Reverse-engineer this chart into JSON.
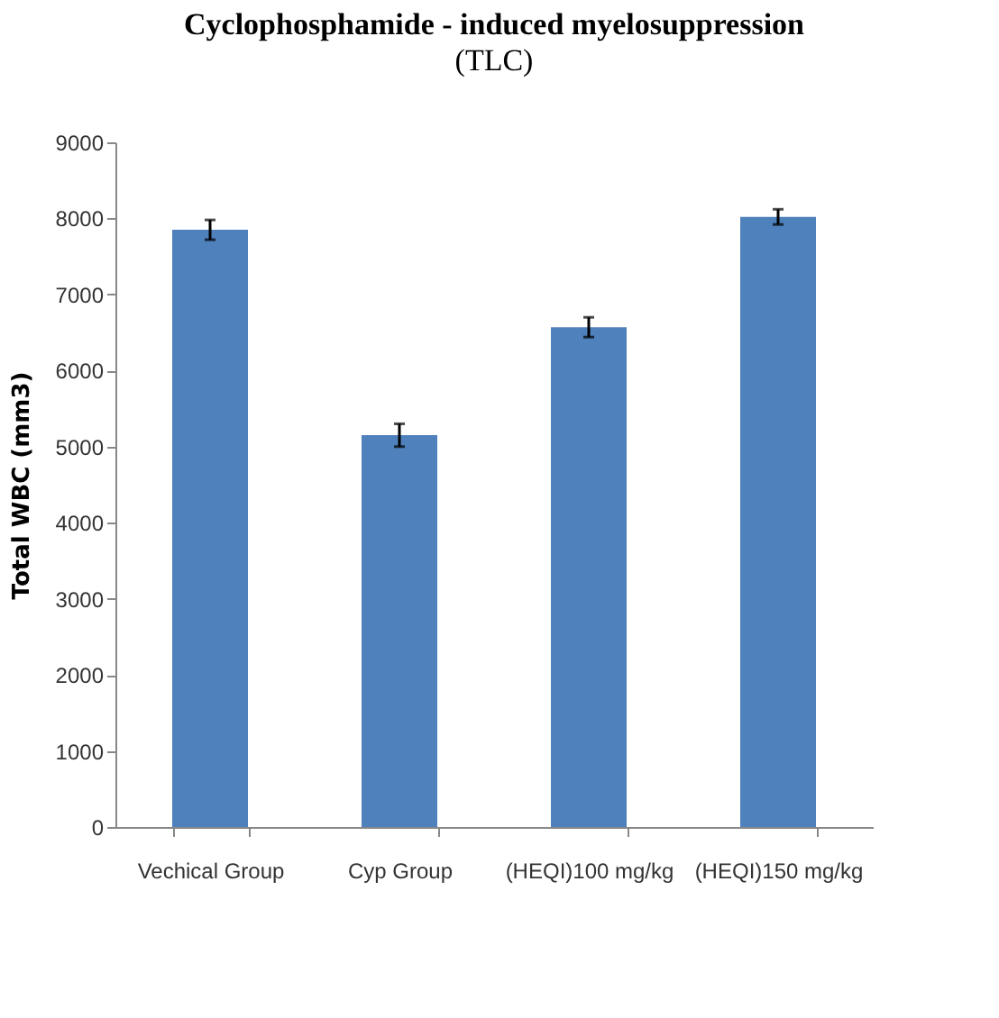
{
  "chart_data": {
    "type": "bar",
    "title": "Cyclophosphamide - induced myelosuppression",
    "subtitle": "(TLC)",
    "ylabel": "Total WBC   (mm3)",
    "categories": [
      "Vechical Group",
      "Cyp Group",
      "(HEQI)100 mg/kg",
      "(HEQI)150 mg/kg"
    ],
    "values": [
      7850,
      5150,
      6570,
      8020
    ],
    "errors": [
      130,
      150,
      130,
      100
    ],
    "color": "#4f81bd",
    "ylim": [
      0,
      9000
    ],
    "yticks": [
      0,
      1000,
      2000,
      3000,
      4000,
      5000,
      6000,
      7000,
      8000,
      9000
    ],
    "grid": false
  }
}
